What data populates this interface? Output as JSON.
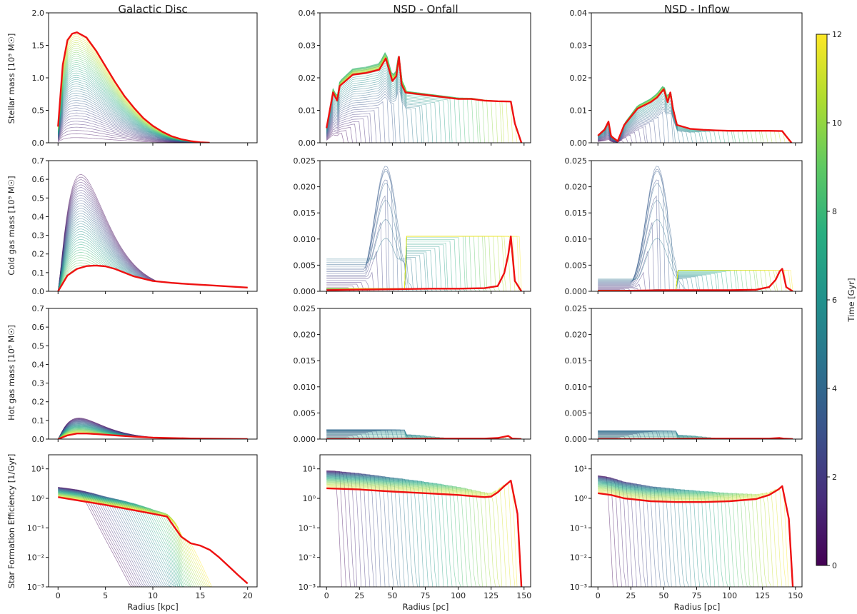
{
  "chart_data": {
    "type": "line",
    "column_titles": [
      "Galactic Disc",
      "NSD - Onfall",
      "NSD - Inflow"
    ],
    "row_ylabels": [
      "Stellar mass [10⁹ M☉]",
      "Cold gas mass [10⁹ M☉]",
      "Hot gas mass [10⁹ M☉]",
      "Star Formation Efficiency [1/Gyr]"
    ],
    "xlabels": [
      "Radius [kpc]",
      "Radius [pc]",
      "Radius [pc]"
    ],
    "xlim": [
      [
        -1,
        21
      ],
      [
        -5,
        155
      ],
      [
        -5,
        155
      ]
    ],
    "xticks": [
      [
        0,
        5,
        10,
        15,
        20
      ],
      [
        0,
        25,
        50,
        75,
        100,
        125,
        150
      ],
      [
        0,
        25,
        50,
        75,
        100,
        125,
        150
      ]
    ],
    "row_ylim": [
      [
        [
          0,
          2.0
        ],
        [
          0,
          0.04
        ],
        [
          0,
          0.04
        ]
      ],
      [
        [
          0,
          0.7
        ],
        [
          0,
          0.025
        ],
        [
          0,
          0.025
        ]
      ],
      [
        [
          0,
          0.7
        ],
        [
          0,
          0.025
        ],
        [
          0,
          0.025
        ]
      ],
      [
        [
          0.001,
          30
        ],
        [
          0.001,
          30
        ],
        [
          0.001,
          30
        ]
      ]
    ],
    "row_yticks": [
      [
        [
          "0.0",
          "0.5",
          "1.0",
          "1.5",
          "2.0"
        ],
        [
          "0.00",
          "0.01",
          "0.02",
          "0.03",
          "0.04"
        ],
        [
          "0.00",
          "0.01",
          "0.02",
          "0.03",
          "0.04"
        ]
      ],
      [
        [
          "0.0",
          "0.1",
          "0.2",
          "0.3",
          "0.4",
          "0.5",
          "0.6",
          "0.7"
        ],
        [
          "0.000",
          "0.005",
          "0.010",
          "0.015",
          "0.020",
          "0.025"
        ],
        [
          "0.000",
          "0.005",
          "0.010",
          "0.015",
          "0.020",
          "0.025"
        ]
      ],
      [
        [
          "0.0",
          "0.1",
          "0.2",
          "0.3",
          "0.4",
          "0.5",
          "0.6",
          "0.7"
        ],
        [
          "0.000",
          "0.005",
          "0.010",
          "0.015",
          "0.020",
          "0.025"
        ],
        [
          "0.000",
          "0.005",
          "0.010",
          "0.015",
          "0.020",
          "0.025"
        ]
      ],
      [
        [
          "10⁻³",
          "10⁻²",
          "10⁻¹",
          "10⁰",
          "10¹"
        ],
        [
          "10⁻³",
          "10⁻²",
          "10⁻¹",
          "10⁰",
          "10¹"
        ],
        [
          "10⁻³",
          "10⁻²",
          "10⁻¹",
          "10⁰",
          "10¹"
        ]
      ]
    ],
    "colorbar": {
      "label": "Time [Gyr]",
      "range": [
        0,
        12
      ],
      "ticks": [
        "0",
        "2",
        "4",
        "6",
        "8",
        "10",
        "12"
      ],
      "colormap": "viridis"
    },
    "final_curve_color": "#ee1111",
    "final_curves": [
      [
        {
          "x": [
            0,
            0.5,
            1,
            1.5,
            2,
            3,
            4,
            5,
            6,
            7,
            8,
            9,
            10,
            11,
            12,
            13,
            14,
            15,
            16
          ],
          "y": [
            0.25,
            1.2,
            1.58,
            1.68,
            1.7,
            1.62,
            1.42,
            1.18,
            0.94,
            0.72,
            0.54,
            0.38,
            0.26,
            0.17,
            0.1,
            0.055,
            0.025,
            0.008,
            0.0
          ]
        },
        {
          "x": [
            0,
            5,
            8,
            10,
            20,
            30,
            40,
            45,
            50,
            53,
            55,
            57,
            60,
            70,
            80,
            90,
            100,
            110,
            120,
            130,
            140,
            143,
            148
          ],
          "y": [
            0.0045,
            0.0155,
            0.013,
            0.0175,
            0.021,
            0.0215,
            0.0225,
            0.026,
            0.019,
            0.0205,
            0.0265,
            0.018,
            0.0155,
            0.015,
            0.0145,
            0.014,
            0.0135,
            0.0135,
            0.013,
            0.0128,
            0.0127,
            0.006,
            0.0
          ]
        },
        {
          "x": [
            0,
            5,
            8,
            10,
            15,
            20,
            25,
            30,
            40,
            45,
            50,
            53,
            55,
            57,
            60,
            70,
            80,
            90,
            100,
            110,
            120,
            130,
            140,
            143,
            147
          ],
          "y": [
            0.0022,
            0.004,
            0.0065,
            0.002,
            0.0005,
            0.0055,
            0.008,
            0.0105,
            0.0125,
            0.014,
            0.0165,
            0.0125,
            0.0155,
            0.0105,
            0.0055,
            0.0043,
            0.004,
            0.0038,
            0.0037,
            0.0037,
            0.0037,
            0.0037,
            0.0036,
            0.002,
            0.0
          ]
        }
      ],
      [
        {
          "x": [
            0,
            1,
            2,
            3,
            4,
            5,
            6,
            7,
            8,
            10,
            12,
            14,
            16,
            18,
            20
          ],
          "y": [
            0.0,
            0.085,
            0.12,
            0.135,
            0.138,
            0.134,
            0.12,
            0.1,
            0.08,
            0.055,
            0.045,
            0.038,
            0.032,
            0.026,
            0.02
          ]
        },
        {
          "x": [
            0,
            20,
            50,
            80,
            100,
            120,
            130,
            135,
            138,
            140,
            143,
            148
          ],
          "y": [
            0.0002,
            0.0003,
            0.0004,
            0.0005,
            0.0005,
            0.0006,
            0.001,
            0.0035,
            0.007,
            0.0105,
            0.002,
            0.0
          ]
        },
        {
          "x": [
            0,
            20,
            50,
            80,
            100,
            120,
            130,
            135,
            138,
            140,
            143,
            148
          ],
          "y": [
            0.0001,
            0.0001,
            0.0002,
            0.0002,
            0.0002,
            0.0003,
            0.0008,
            0.0022,
            0.0038,
            0.0043,
            0.0008,
            0.0
          ]
        }
      ],
      [
        {
          "x": [
            0,
            1,
            2,
            3,
            4,
            6,
            8,
            10,
            14,
            20
          ],
          "y": [
            0.0,
            0.02,
            0.03,
            0.03,
            0.027,
            0.02,
            0.013,
            0.008,
            0.003,
            0.0
          ]
        },
        {
          "x": [
            0,
            40,
            80,
            120,
            130,
            138,
            141,
            148
          ],
          "y": [
            0.0,
            0.0,
            0.0001,
            0.0001,
            0.0002,
            0.0006,
            0.0001,
            0.0
          ]
        },
        {
          "x": [
            0,
            40,
            80,
            120,
            130,
            138,
            141,
            148
          ],
          "y": [
            0.0,
            0.0,
            0.0001,
            0.0001,
            0.0001,
            0.0002,
            0.0001,
            0.0
          ]
        }
      ],
      [
        {
          "x": [
            0,
            5,
            10,
            11.5,
            13,
            14,
            15,
            16,
            17,
            18,
            19,
            20
          ],
          "y": [
            1.1,
            0.6,
            0.3,
            0.24,
            0.05,
            0.03,
            0.025,
            0.018,
            0.01,
            0.005,
            0.0025,
            0.0013
          ]
        },
        {
          "x": [
            0,
            25,
            50,
            75,
            100,
            120,
            125,
            130,
            135,
            140,
            145,
            148
          ],
          "y": [
            2.2,
            2.0,
            1.7,
            1.5,
            1.3,
            1.1,
            1.15,
            1.6,
            2.6,
            4.0,
            0.3,
            0.001
          ]
        },
        {
          "x": [
            0,
            10,
            20,
            40,
            60,
            80,
            100,
            120,
            130,
            137,
            140,
            145,
            148
          ],
          "y": [
            1.5,
            1.3,
            1.0,
            0.8,
            0.75,
            0.75,
            0.8,
            0.95,
            1.3,
            2.0,
            2.6,
            0.2,
            0.001
          ]
        }
      ]
    ]
  }
}
